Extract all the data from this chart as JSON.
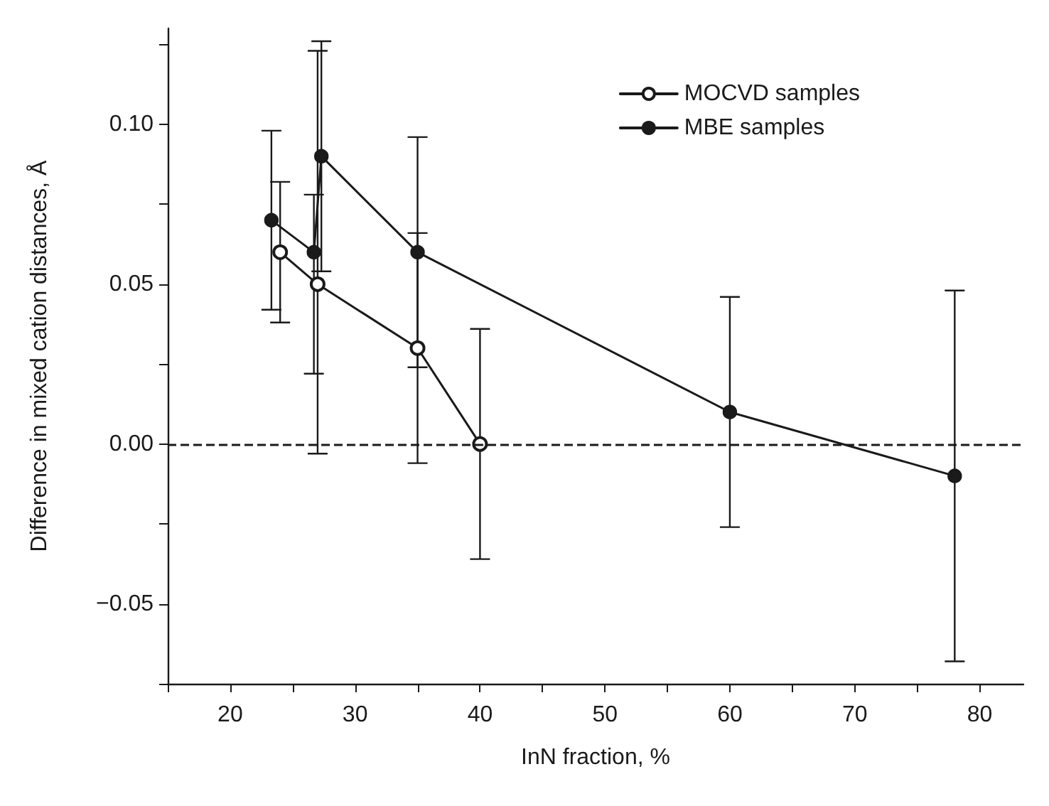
{
  "chart_data": {
    "type": "line",
    "xlabel": "InN fraction, %",
    "ylabel": "Difference in mixed cation distances, Å",
    "xlim": [
      15,
      83.5
    ],
    "xticks": [
      {
        "value": 15,
        "label": null
      },
      20,
      {
        "value": 25,
        "label": null
      },
      30,
      {
        "value": 35,
        "label": null
      },
      40,
      {
        "value": 45,
        "label": null
      },
      50,
      {
        "value": 55,
        "label": null
      },
      60,
      {
        "value": 65,
        "label": null
      },
      70,
      {
        "value": 75,
        "label": null
      },
      80
    ],
    "ylim": [
      -0.075,
      0.13
    ],
    "yticks": [
      {
        "value": -0.075,
        "label": null
      },
      {
        "value": -0.05,
        "label": "−0.05"
      },
      {
        "value": -0.025,
        "label": null
      },
      {
        "value": 0,
        "label": "0.00"
      },
      {
        "value": 0.025,
        "label": null
      },
      {
        "value": 0.05,
        "label": "0.05"
      },
      {
        "value": 0.075,
        "label": null
      },
      {
        "value": 0.1,
        "label": "0.10"
      },
      {
        "value": 0.125,
        "label": null
      }
    ],
    "series": [
      {
        "name": "MOCVD samples",
        "color": "#1a1a1a",
        "marker": "emptyCircle",
        "x": [
          24,
          27,
          35,
          40
        ],
        "values": [
          0.06,
          0.05,
          0.03,
          0
        ],
        "errors": [
          [
            0.038,
            0.082
          ],
          [
            -0.003,
            0.123
          ],
          [
            -0.006,
            0.066
          ],
          [
            -0.036,
            0.036
          ]
        ]
      },
      {
        "name": "MBE samples",
        "color": "#1a1a1a",
        "marker": "circle",
        "x": [
          23.3,
          26.7,
          27.3,
          35,
          60,
          78
        ],
        "values": [
          0.07,
          0.06,
          0.09,
          0.06,
          0.01,
          -0.01
        ],
        "errors": [
          [
            0.042,
            0.098
          ],
          [
            0.022,
            0.078
          ],
          [
            0.054,
            0.126
          ],
          [
            0.024,
            0.096
          ],
          [
            -0.026,
            0.046
          ],
          [
            -0.068,
            0.048
          ]
        ]
      }
    ],
    "ref_lines": [
      {
        "axis": "y",
        "value": 0,
        "label": null,
        "color": "#1a1a1a",
        "line_style": "dashed"
      }
    ],
    "legend": "top right",
    "grid": false,
    "line_style": "solid"
  }
}
